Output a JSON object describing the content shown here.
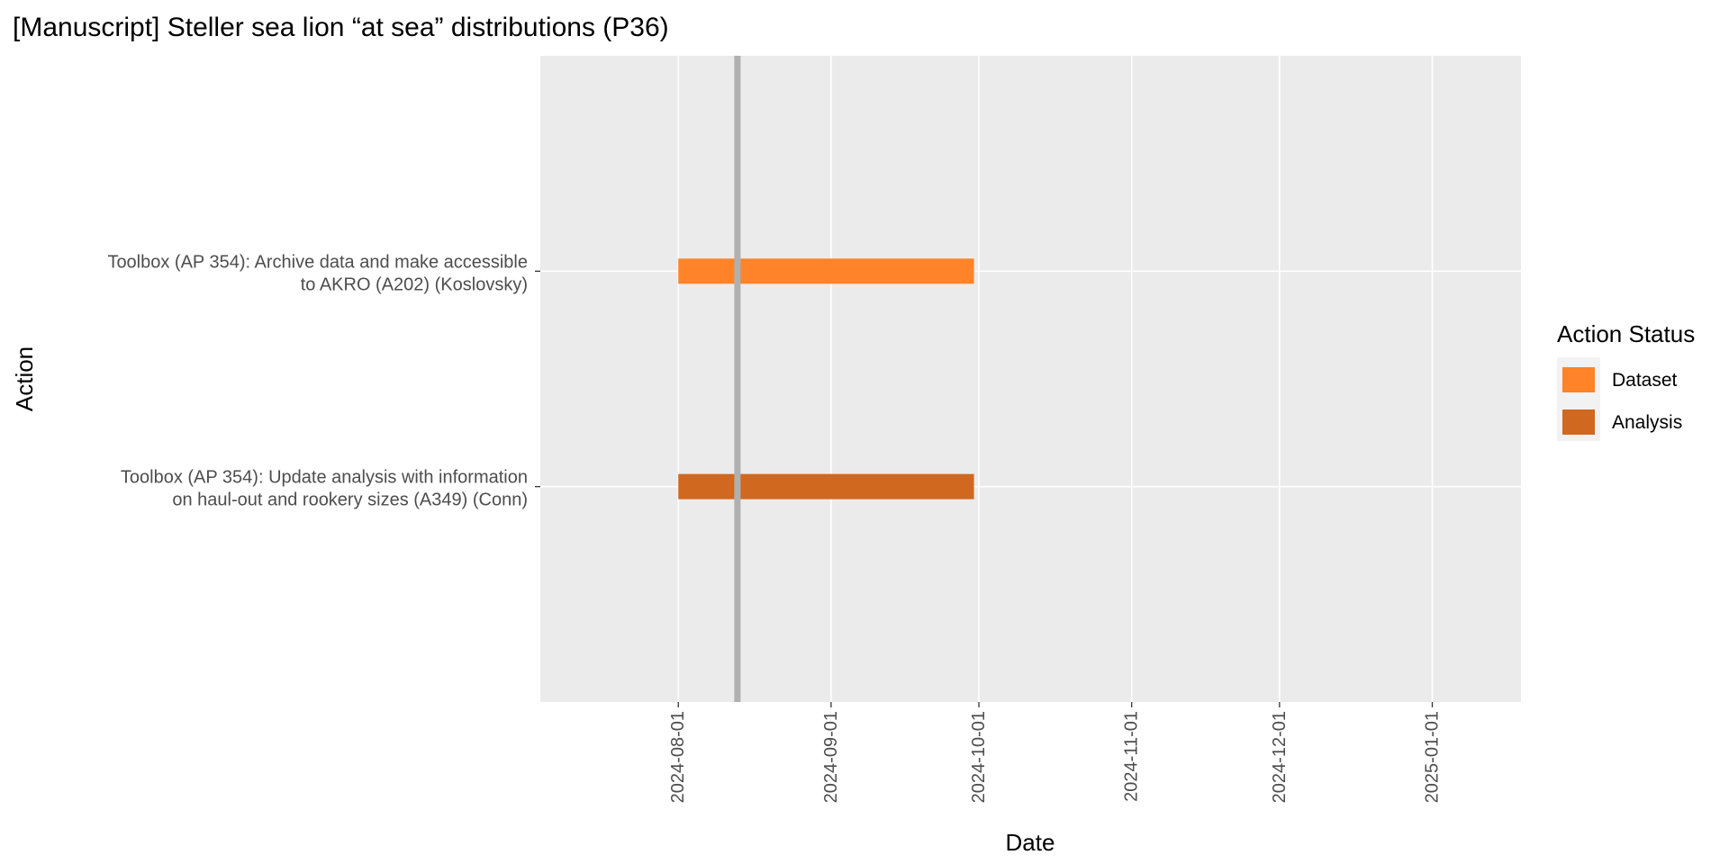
{
  "chart_data": {
    "type": "gantt",
    "title": "[Manuscript] Steller sea lion “at sea” distributions (P36)",
    "xlabel": "Date",
    "ylabel": "Action",
    "x_axis": {
      "type": "date",
      "range": [
        "2024-07-04",
        "2025-01-19"
      ],
      "ticks": [
        "2024-08-01",
        "2024-09-01",
        "2024-10-01",
        "2024-11-01",
        "2024-12-01",
        "2025-01-01"
      ]
    },
    "categories": [
      [
        "Toolbox (AP 354): Archive data and make accessible",
        "to AKRO (A202) (Koslovsky)"
      ],
      [
        "Toolbox (AP 354): Update analysis with information",
        "on haul-out and rookery sizes (A349) (Conn)"
      ]
    ],
    "tasks": [
      {
        "category_index": 0,
        "start": "2024-08-01",
        "end": "2024-09-30",
        "status": "Dataset"
      },
      {
        "category_index": 1,
        "start": "2024-08-01",
        "end": "2024-09-30",
        "status": "Analysis"
      }
    ],
    "reference_line": {
      "date": "2024-08-13",
      "color": "#b0b0b0"
    },
    "legend": {
      "title": "Action Status",
      "position": "right",
      "items": [
        {
          "label": "Dataset",
          "color": "#ff8328"
        },
        {
          "label": "Analysis",
          "color": "#d06820"
        }
      ]
    },
    "grid": true,
    "panel_background": "#ebebeb",
    "grid_color": "#ffffff"
  }
}
